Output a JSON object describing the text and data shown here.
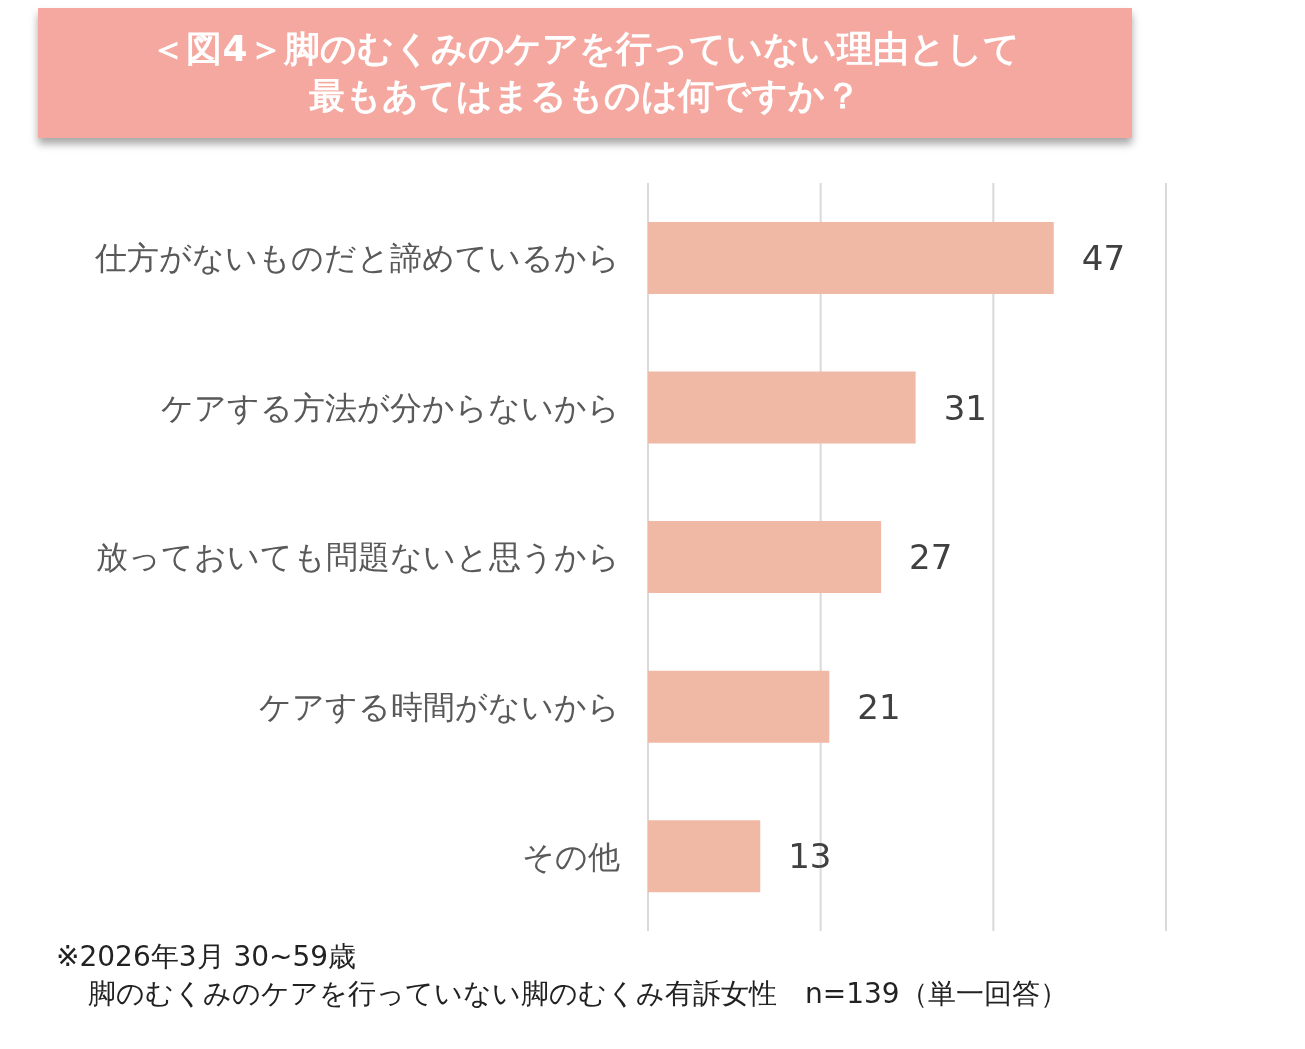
{
  "chart_data": {
    "type": "bar",
    "orientation": "horizontal",
    "title": "＜図4＞脚のむくみのケアを行っていない理由として最もあてはまるものは何ですか？",
    "categories": [
      "仕方がないものだと諦めているから",
      "ケアする方法が分からないから",
      "放っておいても問題ないと思うから",
      "ケアする時間がないから",
      "その他"
    ],
    "values": [
      47,
      31,
      27,
      21,
      13
    ],
    "color": "#f0b9a5",
    "xlim": [
      0,
      60
    ],
    "xticks": [
      {
        "value": 0,
        "label": null
      },
      {
        "value": 20,
        "label": null
      },
      {
        "value": 40,
        "label": null
      },
      {
        "value": 60,
        "label": null
      }
    ],
    "tick_labels": "y",
    "grid": "x",
    "data_labels": true,
    "annotations": [
      "※2026年3月 30~59歳",
      "脚のむくみのケアを行っていない脚のむくみ有訴女性　n=139（単一回答）"
    ]
  }
}
